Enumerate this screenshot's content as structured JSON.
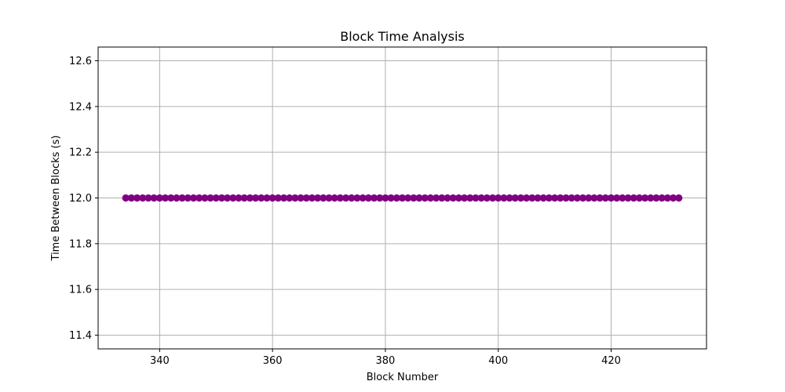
{
  "chart_data": {
    "type": "scatter",
    "title": "Block Time Analysis",
    "xlabel": "Block Number",
    "ylabel": "Time Between Blocks (s)",
    "xlim": [
      329.1,
      436.9
    ],
    "ylim": [
      11.34,
      12.66
    ],
    "xticks": [
      340,
      360,
      380,
      400,
      420
    ],
    "xtick_labels": [
      "340",
      "360",
      "380",
      "400",
      "420"
    ],
    "yticks": [
      11.4,
      11.6,
      11.8,
      12.0,
      12.2,
      12.4,
      12.6
    ],
    "ytick_labels": [
      "11.4",
      "11.6",
      "11.8",
      "12.0",
      "12.2",
      "12.4",
      "12.6"
    ],
    "grid": true,
    "legend": "none",
    "series": [
      {
        "color": "#800080",
        "x_start": 334,
        "x_end": 432,
        "y": 12.0
      }
    ]
  }
}
